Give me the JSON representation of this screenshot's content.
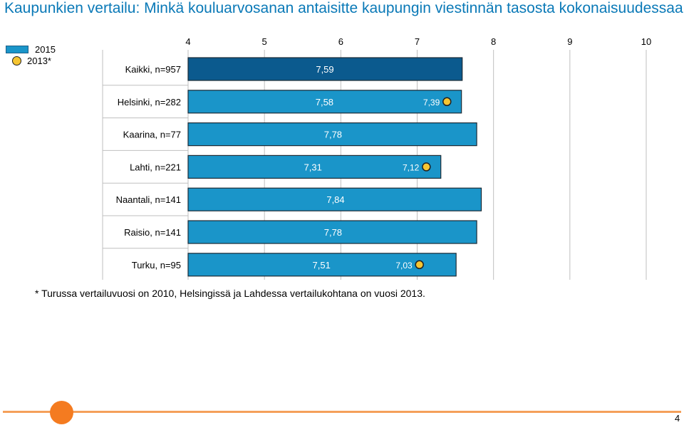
{
  "title": "Kaupunkien vertailu: Minkä kouluarvosanan antaisitte kaupungin viestinnän tasosta kokonaisuudessaan?",
  "legend": {
    "series_2015": "2015",
    "series_2013": "2013*"
  },
  "footnote": "* Turussa vertailuvuosi on 2010, Helsingissä ja Lahdessa vertailukohtana on vuosi 2013.",
  "page_number": "4",
  "colors": {
    "title": "#0a79b7",
    "bar_total": "#0b5a8e",
    "bar_city": "#1a95c9",
    "marker": "#f6c531",
    "accent_orange": "#f47b20"
  },
  "chart_data": {
    "type": "bar",
    "orientation": "horizontal",
    "xlim": [
      4,
      10
    ],
    "xticks": [
      "4",
      "5",
      "6",
      "7",
      "8",
      "9",
      "10"
    ],
    "categories": [
      "Kaikki, n=957",
      "Helsinki, n=282",
      "Kaarina, n=77",
      "Lahti, n=221",
      "Naantali, n=141",
      "Raisio, n=141",
      "Turku, n=95"
    ],
    "series": [
      {
        "name": "2015",
        "values": [
          7.59,
          7.58,
          7.78,
          7.31,
          7.84,
          7.78,
          7.51
        ],
        "labels": [
          "7,59",
          "7,58",
          "7,78",
          "7,31",
          "7,84",
          "7,78",
          "7,51"
        ]
      },
      {
        "name": "2013*",
        "values": [
          null,
          7.39,
          null,
          7.12,
          null,
          null,
          7.03
        ],
        "labels": [
          "",
          "7,39",
          "",
          "7,12",
          "",
          "",
          "7,03"
        ]
      }
    ]
  }
}
